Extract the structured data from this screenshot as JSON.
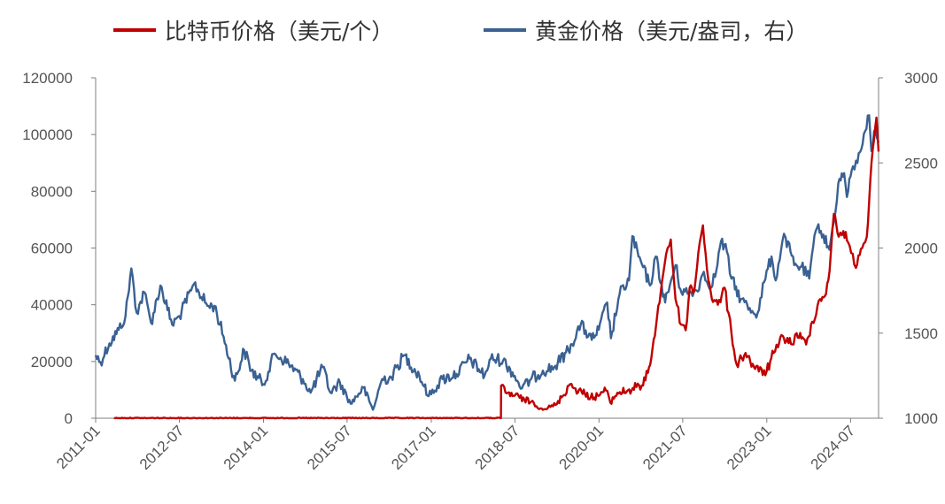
{
  "legend": {
    "btc_label": "比特币价格（美元/个）",
    "gold_label": "黄金价格（美元/盎司，右）"
  },
  "colors": {
    "btc": "#c00000",
    "gold": "#3a6192",
    "axis": "#7f7f7f"
  },
  "chart_data": {
    "type": "line",
    "title": "",
    "xlabel": "",
    "ylabel_left": "",
    "ylabel_right": "",
    "x_ticks": [
      "2011-01",
      "2012-07",
      "2014-01",
      "2015-07",
      "2017-01",
      "2018-07",
      "2020-01",
      "2021-07",
      "2023-01",
      "2024-07"
    ],
    "y_left_ticks": [
      0,
      20000,
      40000,
      60000,
      80000,
      100000,
      120000
    ],
    "y_right_ticks": [
      1000,
      1500,
      2000,
      2500,
      3000
    ],
    "ylim_left": [
      0,
      120000
    ],
    "ylim_right": [
      1000,
      3000
    ],
    "x_range": [
      "2011-01-01",
      "2024-12-31"
    ],
    "grid": false,
    "legend_position": "top",
    "series": [
      {
        "name": "比特币价格（美元/个）",
        "axis": "left",
        "x": [
          "2011-05-01",
          "2018-04-01",
          "2018-04-02",
          "2018-05-01",
          "2018-07-01",
          "2018-09-01",
          "2018-11-01",
          "2018-12-15",
          "2019-02-01",
          "2019-04-01",
          "2019-06-26",
          "2019-08-01",
          "2019-10-01",
          "2019-12-01",
          "2020-02-15",
          "2020-03-15",
          "2020-05-01",
          "2020-07-01",
          "2020-09-01",
          "2020-10-15",
          "2020-11-15",
          "2020-12-31",
          "2021-01-15",
          "2021-02-15",
          "2021-03-15",
          "2021-04-14",
          "2021-05-15",
          "2021-06-20",
          "2021-07-20",
          "2021-08-15",
          "2021-09-15",
          "2021-10-20",
          "2021-11-10",
          "2021-12-15",
          "2022-01-15",
          "2022-02-15",
          "2022-03-31",
          "2022-05-15",
          "2022-06-18",
          "2022-08-15",
          "2022-09-15",
          "2022-11-10",
          "2022-12-31",
          "2023-02-15",
          "2023-03-15",
          "2023-04-15",
          "2023-06-15",
          "2023-07-15",
          "2023-09-15",
          "2023-10-25",
          "2023-12-15",
          "2024-01-15",
          "2024-02-15",
          "2024-03-14",
          "2024-04-15",
          "2024-05-15",
          "2024-06-15",
          "2024-07-15",
          "2024-08-05",
          "2024-09-15",
          "2024-10-15",
          "2024-11-15",
          "2024-12-17",
          "2024-12-31"
        ],
        "values": [
          50,
          50,
          11500,
          9000,
          8000,
          6500,
          5500,
          3500,
          3600,
          5000,
          12000,
          10500,
          8500,
          7300,
          9800,
          5500,
          9000,
          9500,
          11000,
          11500,
          16000,
          29000,
          36000,
          48000,
          58000,
          63000,
          42000,
          33000,
          31000,
          46000,
          45000,
          62000,
          68000,
          49000,
          41000,
          40000,
          46000,
          30000,
          19000,
          23000,
          20000,
          16500,
          16500,
          23000,
          25000,
          29000,
          26000,
          30000,
          26000,
          34000,
          42000,
          43000,
          52000,
          72000,
          64000,
          66000,
          62000,
          58000,
          53000,
          60000,
          64000,
          90000,
          106000,
          94000
        ]
      },
      {
        "name": "黄金价格（美元/盎司，右）",
        "axis": "right",
        "x": [
          "2011-01-01",
          "2011-02-01",
          "2011-04-01",
          "2011-06-01",
          "2011-07-15",
          "2011-08-22",
          "2011-09-26",
          "2011-11-15",
          "2011-12-29",
          "2012-02-28",
          "2012-05-15",
          "2012-07-01",
          "2012-09-15",
          "2012-10-05",
          "2012-12-31",
          "2013-02-15",
          "2013-04-15",
          "2013-06-28",
          "2013-08-28",
          "2013-10-15",
          "2013-12-31",
          "2014-03-15",
          "2014-06-15",
          "2014-09-15",
          "2014-11-05",
          "2015-01-22",
          "2015-03-15",
          "2015-05-15",
          "2015-07-24",
          "2015-10-15",
          "2015-12-17",
          "2016-02-15",
          "2016-04-15",
          "2016-07-06",
          "2016-10-15",
          "2016-12-15",
          "2017-03-15",
          "2017-06-15",
          "2017-09-08",
          "2017-12-15",
          "2018-01-25",
          "2018-04-15",
          "2018-06-15",
          "2018-08-16",
          "2018-10-15",
          "2018-12-31",
          "2019-03-15",
          "2019-06-15",
          "2019-09-04",
          "2019-11-15",
          "2019-12-31",
          "2020-02-24",
          "2020-03-19",
          "2020-05-15",
          "2020-07-15",
          "2020-08-06",
          "2020-09-15",
          "2020-11-30",
          "2021-01-06",
          "2021-03-08",
          "2021-05-15",
          "2021-06-15",
          "2021-08-09",
          "2021-09-30",
          "2021-11-16",
          "2021-12-15",
          "2022-01-28",
          "2022-03-08",
          "2022-04-15",
          "2022-05-15",
          "2022-07-15",
          "2022-09-28",
          "2022-11-03",
          "2022-12-15",
          "2023-02-01",
          "2023-02-28",
          "2023-04-13",
          "2023-05-04",
          "2023-06-29",
          "2023-08-15",
          "2023-10-05",
          "2023-10-31",
          "2023-12-04",
          "2024-02-14",
          "2024-03-15",
          "2024-04-12",
          "2024-05-20",
          "2024-06-07",
          "2024-07-17",
          "2024-08-15",
          "2024-09-26",
          "2024-10-30",
          "2024-11-14",
          "2024-12-10",
          "2024-12-31"
        ],
        "values": [
          1370,
          1330,
          1440,
          1520,
          1600,
          1880,
          1620,
          1740,
          1560,
          1780,
          1550,
          1600,
          1750,
          1790,
          1660,
          1660,
          1480,
          1220,
          1400,
          1280,
          1200,
          1380,
          1320,
          1230,
          1150,
          1300,
          1150,
          1210,
          1085,
          1180,
          1050,
          1230,
          1240,
          1370,
          1250,
          1130,
          1230,
          1260,
          1350,
          1250,
          1350,
          1340,
          1270,
          1175,
          1230,
          1280,
          1300,
          1400,
          1550,
          1460,
          1520,
          1680,
          1470,
          1730,
          1810,
          2070,
          1950,
          1780,
          1950,
          1680,
          1900,
          1760,
          1730,
          1750,
          1860,
          1780,
          1830,
          2040,
          1980,
          1820,
          1700,
          1630,
          1620,
          1800,
          1950,
          1810,
          2040,
          2060,
          1900,
          1890,
          1820,
          2010,
          2140,
          1990,
          2160,
          2380,
          2440,
          2300,
          2480,
          2500,
          2670,
          2780,
          2570,
          2700,
          2620
        ]
      }
    ]
  }
}
